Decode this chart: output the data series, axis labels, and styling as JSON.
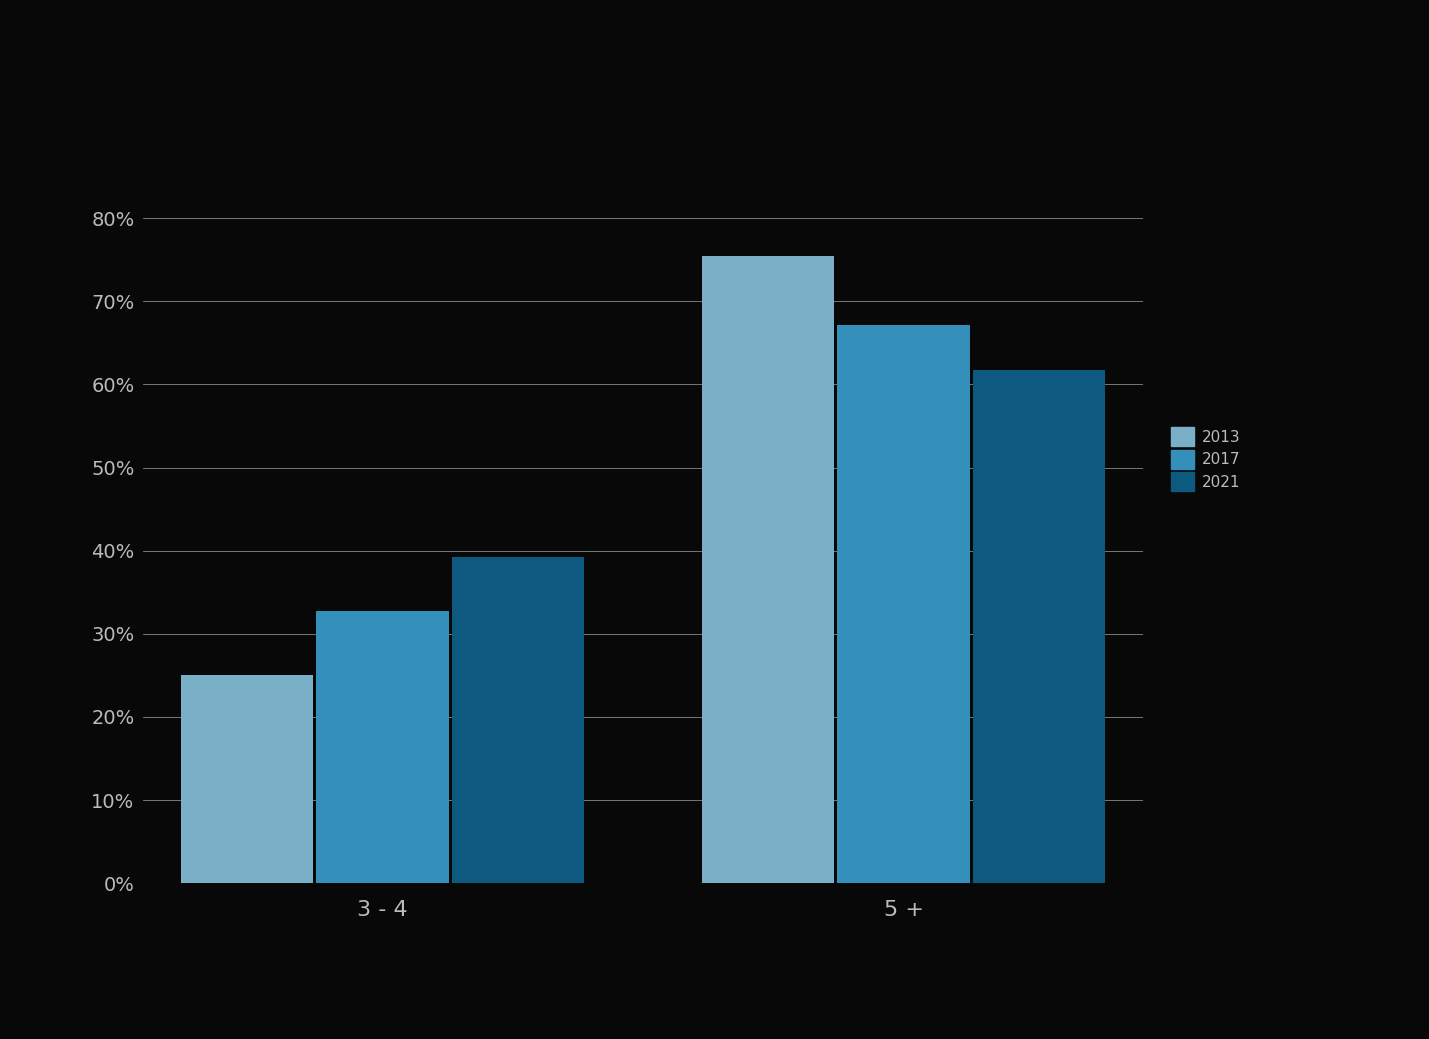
{
  "categories": [
    "3 - 4",
    "5 +"
  ],
  "series": [
    {
      "label": "2013",
      "values": [
        0.25,
        0.755
      ],
      "color": "#7AAFC8"
    },
    {
      "label": "2017",
      "values": [
        0.327,
        0.672
      ],
      "color": "#3490BB"
    },
    {
      "label": "2021",
      "values": [
        0.392,
        0.617
      ],
      "color": "#0D5980"
    }
  ],
  "ylim": [
    0,
    0.85
  ],
  "yticks": [
    0.0,
    0.1,
    0.2,
    0.3,
    0.4,
    0.5,
    0.6,
    0.7,
    0.8
  ],
  "ytick_labels": [
    "0%",
    "10%",
    "20%",
    "30%",
    "40%",
    "50%",
    "60%",
    "70%",
    "80%"
  ],
  "background_color": "#080808",
  "grid_color": "#888888",
  "text_color": "#BBBBBB",
  "bar_width": 0.13
}
